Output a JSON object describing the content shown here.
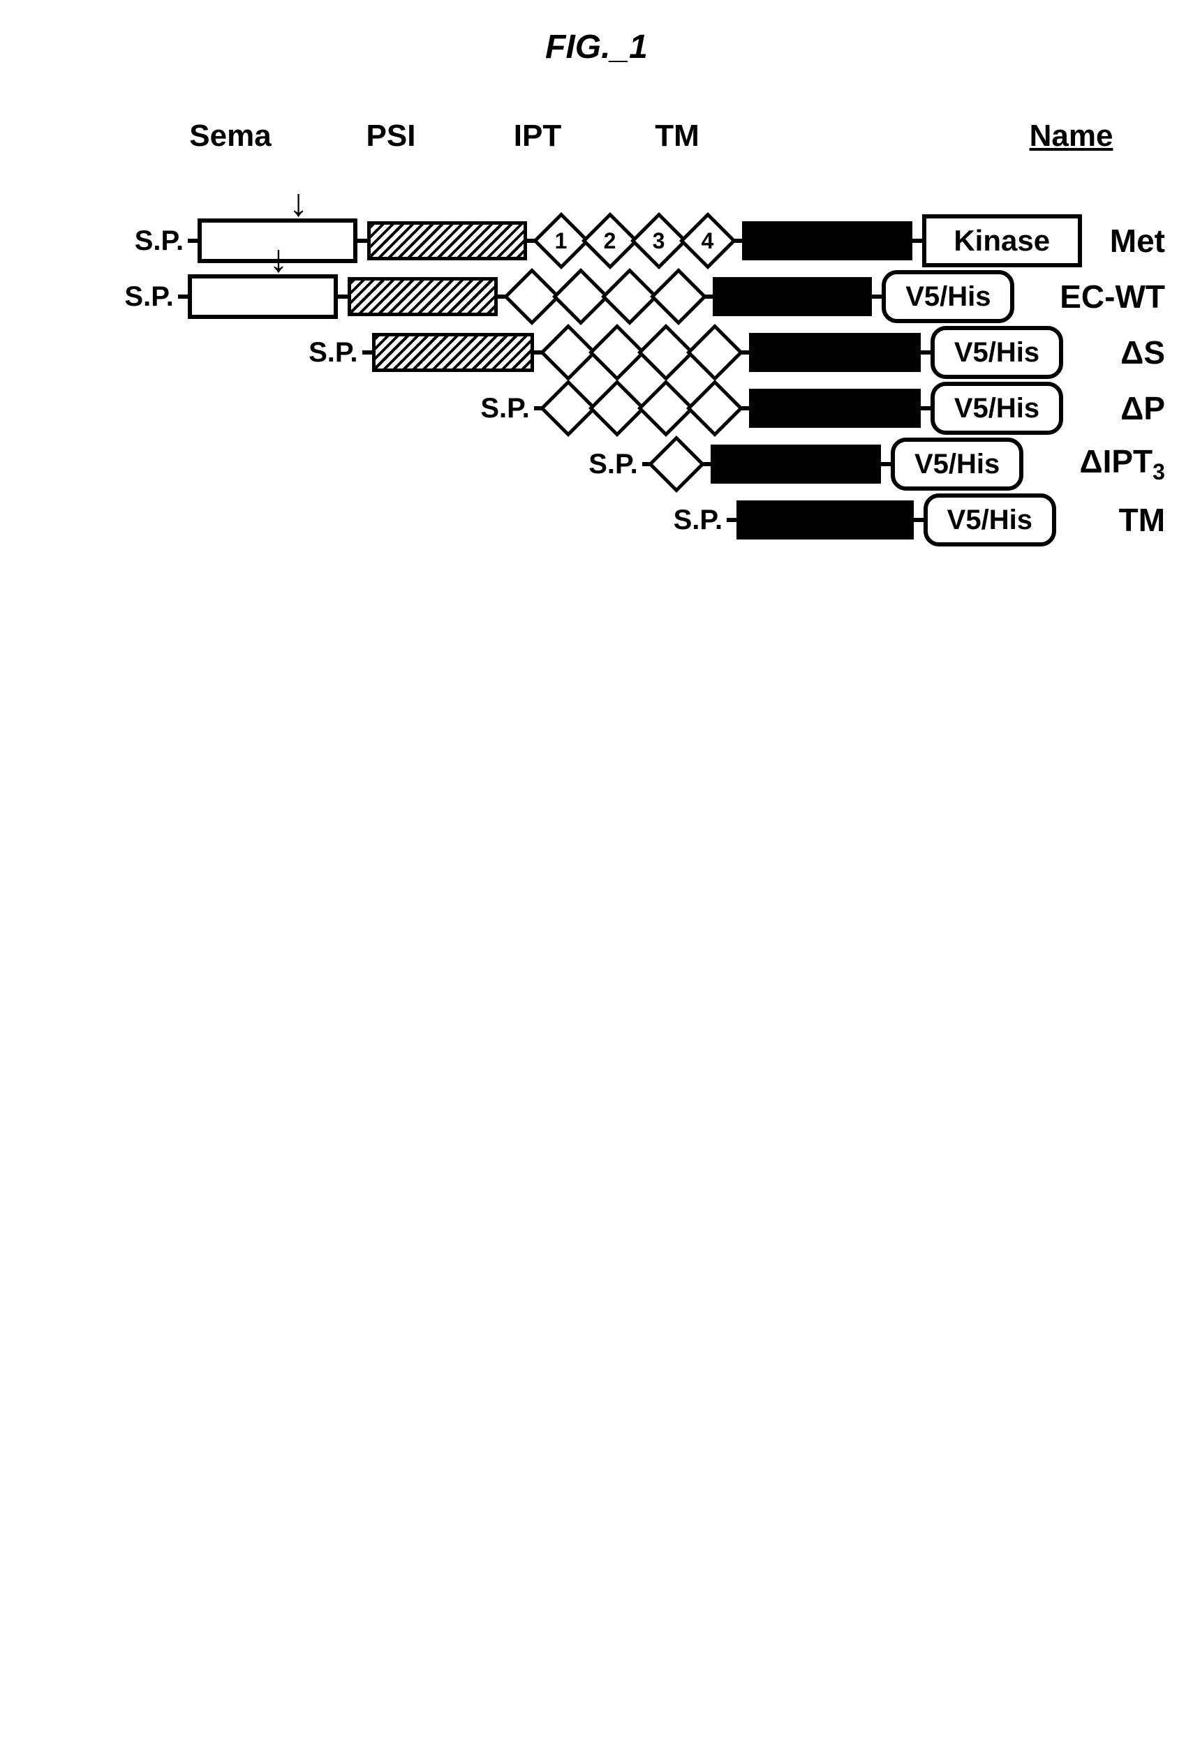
{
  "figure_label": "FIG._1",
  "column_headers": {
    "sema": "Sema",
    "psi": "PSI",
    "ipt": "IPT",
    "tm": "TM",
    "name": "Name"
  },
  "sp_label": "S.P.",
  "arrow_glyph": "↓",
  "ipt_numbers": [
    "1",
    "2",
    "3",
    "4"
  ],
  "kinase_label": "Kinase",
  "tag_label": "V5/His",
  "constructs": [
    {
      "sp_before_sema": true,
      "has_sema": true,
      "has_arrow": true,
      "has_psi": true,
      "ipt_count": 4,
      "ipt_numbered": true,
      "sp_before_psi": false,
      "sp_before_ipt": false,
      "sp_before_tm": false,
      "has_tm": true,
      "after": "kinase",
      "name_html": "Met"
    },
    {
      "sp_before_sema": true,
      "has_sema": true,
      "has_arrow": true,
      "has_psi": true,
      "ipt_count": 4,
      "ipt_numbered": false,
      "sp_before_psi": false,
      "sp_before_ipt": false,
      "sp_before_tm": false,
      "has_tm": true,
      "after": "tag",
      "name_html": "EC-WT"
    },
    {
      "sp_before_sema": false,
      "has_sema": false,
      "has_arrow": false,
      "has_psi": true,
      "ipt_count": 4,
      "ipt_numbered": false,
      "sp_before_psi": true,
      "sp_before_ipt": false,
      "sp_before_tm": false,
      "has_tm": true,
      "after": "tag",
      "name_html": "ΔS"
    },
    {
      "sp_before_sema": false,
      "has_sema": false,
      "has_arrow": false,
      "has_psi": false,
      "ipt_count": 4,
      "ipt_numbered": false,
      "sp_before_psi": false,
      "sp_before_ipt": true,
      "sp_before_tm": false,
      "has_tm": true,
      "after": "tag",
      "name_html": "ΔP"
    },
    {
      "sp_before_sema": false,
      "has_sema": false,
      "has_arrow": false,
      "has_psi": false,
      "ipt_count": 1,
      "ipt_numbered": false,
      "sp_before_psi": false,
      "sp_before_ipt": true,
      "sp_before_tm": false,
      "has_tm": true,
      "after": "tag",
      "name_html": "ΔIPT<sub>3</sub>"
    },
    {
      "sp_before_sema": false,
      "has_sema": false,
      "has_arrow": false,
      "has_psi": false,
      "ipt_count": 0,
      "ipt_numbered": false,
      "sp_before_psi": false,
      "sp_before_ipt": false,
      "sp_before_tm": true,
      "has_tm": true,
      "after": "tag",
      "name_html": "TM"
    }
  ],
  "colors": {
    "background": "#ffffff",
    "stroke": "#000000",
    "tm_fill": "#000000"
  }
}
